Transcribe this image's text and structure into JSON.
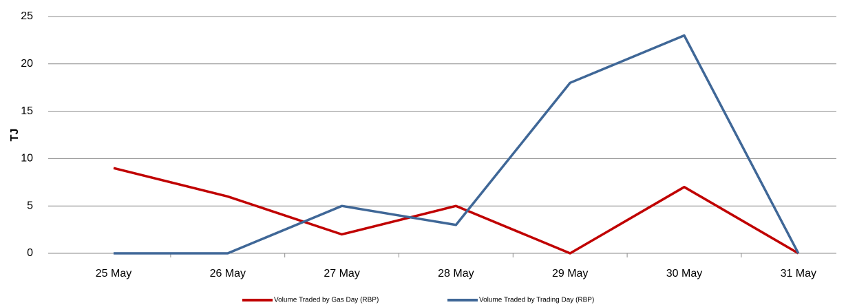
{
  "chart_data": {
    "type": "line",
    "y_label": "TJ",
    "categories": [
      "25 May",
      "26 May",
      "27 May",
      "28 May",
      "29 May",
      "30 May",
      "31 May"
    ],
    "series": [
      {
        "name": "Volume Traded by Gas Day (RBP)",
        "color": "#c00000",
        "values": [
          9,
          6,
          2,
          5,
          0,
          7,
          0
        ]
      },
      {
        "name": "Volume Traded by Trading Day (RBP)",
        "color": "#3f6797",
        "values": [
          0,
          0,
          5,
          3,
          18,
          23,
          0
        ]
      }
    ],
    "ylim": [
      0,
      25
    ],
    "yticks": [
      0,
      5,
      10,
      15,
      20,
      25
    ],
    "grid": true,
    "legend": "bottom"
  }
}
